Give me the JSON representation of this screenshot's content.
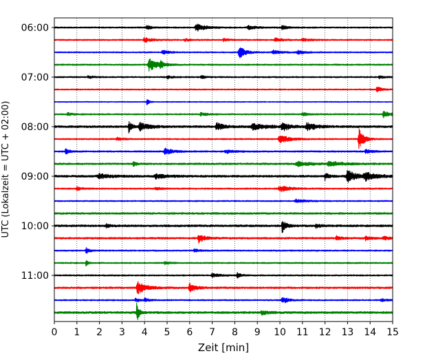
{
  "chart_data": {
    "type": "line",
    "title": "",
    "xlabel": "Zeit  [min]",
    "ylabel": "UTC (Lokalzeit = UTC + 02:00)",
    "xlim": [
      0,
      15
    ],
    "x_ticks": [
      0,
      1,
      2,
      3,
      4,
      5,
      6,
      7,
      8,
      9,
      10,
      11,
      12,
      13,
      14,
      15
    ],
    "y_tick_labels": [
      "06:00",
      "07:00",
      "08:00",
      "09:00",
      "10:00",
      "11:00"
    ],
    "y_tick_trace_index": [
      0,
      4,
      8,
      12,
      16,
      20
    ],
    "trace_minutes": 15,
    "trace_count": 24,
    "grid": "vertical dotted",
    "legend": "none",
    "colors": [
      "#000000",
      "#ff0000",
      "#0000ff",
      "#008000"
    ],
    "traces": [
      {
        "start": "06:00",
        "noise": 1.0,
        "events": [
          [
            6.3,
            0.35,
            6
          ],
          [
            8.6,
            0.3,
            3
          ],
          [
            4.1,
            0.2,
            3
          ],
          [
            10.1,
            0.2,
            3
          ]
        ]
      },
      {
        "start": "06:15",
        "noise": 1.0,
        "events": [
          [
            4.0,
            0.3,
            3.5
          ],
          [
            5.8,
            0.2,
            2
          ],
          [
            7.5,
            0.2,
            2
          ],
          [
            9.8,
            0.3,
            2.5
          ],
          [
            11.0,
            0.3,
            2
          ]
        ]
      },
      {
        "start": "06:30",
        "noise": 0.9,
        "events": [
          [
            8.2,
            0.25,
            9
          ],
          [
            4.8,
            0.25,
            3
          ],
          [
            9.7,
            0.3,
            3
          ],
          [
            10.8,
            0.3,
            2.5
          ]
        ]
      },
      {
        "start": "06:45",
        "noise": 1.0,
        "events": [
          [
            4.2,
            0.3,
            10
          ],
          [
            4.7,
            0.2,
            4
          ]
        ]
      },
      {
        "start": "07:00",
        "noise": 1.0,
        "events": [
          [
            1.5,
            0.2,
            2
          ],
          [
            5.0,
            0.2,
            2
          ],
          [
            6.5,
            0.2,
            2
          ],
          [
            14.4,
            0.2,
            2
          ]
        ]
      },
      {
        "start": "07:15",
        "noise": 0.9,
        "events": [
          [
            14.3,
            0.2,
            4
          ]
        ]
      },
      {
        "start": "07:30",
        "noise": 0.7,
        "events": [
          [
            4.1,
            0.1,
            5
          ]
        ]
      },
      {
        "start": "07:45",
        "noise": 1.0,
        "events": [
          [
            14.6,
            0.3,
            4.5
          ],
          [
            0.6,
            0.2,
            2
          ],
          [
            6.5,
            0.3,
            2
          ],
          [
            11.0,
            0.3,
            2
          ]
        ]
      },
      {
        "start": "08:00",
        "noise": 1.5,
        "events": [
          [
            3.3,
            0.12,
            9
          ],
          [
            3.8,
            0.4,
            5
          ],
          [
            7.2,
            0.3,
            5
          ],
          [
            8.8,
            0.6,
            4
          ],
          [
            10.1,
            0.3,
            6
          ],
          [
            11.2,
            0.4,
            5
          ]
        ]
      },
      {
        "start": "08:15",
        "noise": 1.0,
        "events": [
          [
            13.5,
            0.2,
            16
          ],
          [
            10.0,
            0.4,
            6
          ],
          [
            2.8,
            0.3,
            2
          ]
        ]
      },
      {
        "start": "08:30",
        "noise": 1.1,
        "events": [
          [
            0.5,
            0.15,
            4
          ],
          [
            4.9,
            0.3,
            5
          ],
          [
            7.6,
            0.3,
            2.5
          ],
          [
            13.8,
            0.3,
            2.5
          ]
        ]
      },
      {
        "start": "08:45",
        "noise": 1.3,
        "events": [
          [
            3.5,
            0.15,
            3
          ],
          [
            10.8,
            0.6,
            3
          ],
          [
            12.2,
            0.6,
            3
          ]
        ]
      },
      {
        "start": "09:00",
        "noise": 1.5,
        "events": [
          [
            12.0,
            0.15,
            5
          ],
          [
            13.0,
            0.4,
            8
          ],
          [
            13.8,
            0.5,
            5
          ],
          [
            2.0,
            0.5,
            3
          ],
          [
            4.5,
            0.5,
            3
          ]
        ]
      },
      {
        "start": "09:15",
        "noise": 1.0,
        "events": [
          [
            10.0,
            0.4,
            4.5
          ],
          [
            1.0,
            0.2,
            2.5
          ],
          [
            4.5,
            0.2,
            2
          ]
        ]
      },
      {
        "start": "09:30",
        "noise": 0.9,
        "events": [
          [
            10.7,
            0.4,
            2.5
          ]
        ]
      },
      {
        "start": "09:45",
        "noise": 1.3,
        "events": []
      },
      {
        "start": "10:00",
        "noise": 1.5,
        "events": [
          [
            10.1,
            0.15,
            10
          ],
          [
            2.3,
            0.15,
            3
          ],
          [
            11.6,
            0.2,
            3
          ]
        ]
      },
      {
        "start": "10:15",
        "noise": 1.3,
        "events": [
          [
            6.4,
            0.25,
            6
          ],
          [
            12.5,
            0.2,
            3.5
          ],
          [
            13.8,
            0.2,
            3
          ],
          [
            14.6,
            0.2,
            3
          ]
        ]
      },
      {
        "start": "10:30",
        "noise": 1.0,
        "events": [
          [
            1.4,
            0.15,
            4
          ],
          [
            6.2,
            0.2,
            2
          ]
        ]
      },
      {
        "start": "10:45",
        "noise": 1.0,
        "events": [
          [
            1.4,
            0.1,
            4
          ],
          [
            4.9,
            0.2,
            2
          ]
        ]
      },
      {
        "start": "11:00",
        "noise": 1.0,
        "events": [
          [
            8.1,
            0.15,
            4
          ],
          [
            7.0,
            0.3,
            2.5
          ]
        ]
      },
      {
        "start": "11:15",
        "noise": 1.3,
        "events": [
          [
            3.7,
            0.35,
            9
          ],
          [
            6.0,
            0.25,
            6
          ]
        ]
      },
      {
        "start": "11:30",
        "noise": 1.0,
        "events": [
          [
            10.1,
            0.25,
            5
          ],
          [
            3.6,
            0.2,
            2.5
          ],
          [
            4.0,
            0.2,
            2.5
          ],
          [
            14.5,
            0.2,
            2.5
          ]
        ]
      },
      {
        "start": "11:45",
        "noise": 1.5,
        "events": [
          [
            3.65,
            0.1,
            15
          ],
          [
            9.2,
            0.3,
            2.5
          ]
        ]
      }
    ]
  }
}
